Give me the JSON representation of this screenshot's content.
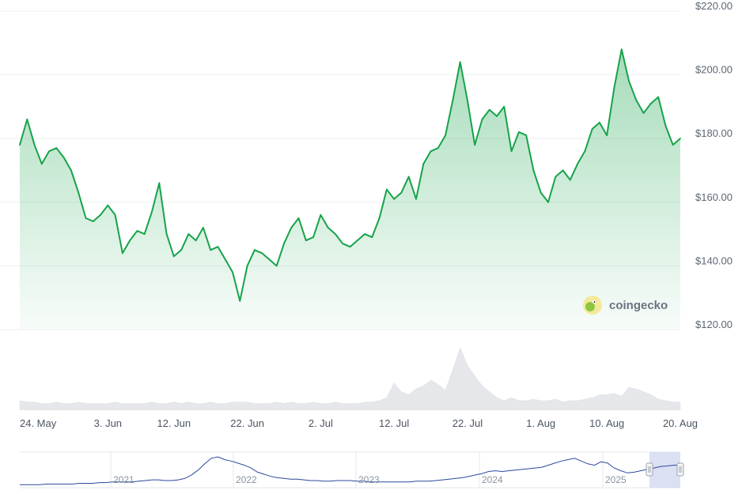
{
  "chart_data": {
    "type": "area",
    "yaxis": {
      "ticks": [
        220,
        200,
        180,
        160,
        140,
        120
      ],
      "tick_labels": [
        "$220.00",
        "$200.00",
        "$180.00",
        "$160.00",
        "$140.00",
        "$120.00"
      ],
      "range": [
        120,
        220
      ],
      "position": "right",
      "grid": true
    },
    "xaxis": {
      "range": [
        "2025-05-22",
        "2025-08-20"
      ],
      "tick_labels": [
        "24. May",
        "3. Jun",
        "12. Jun",
        "22. Jun",
        "2. Jul",
        "12. Jul",
        "22. Jul",
        "1. Aug",
        "10. Aug",
        "20. Aug"
      ],
      "tick_dates": [
        "2025-05-24",
        "2025-06-03",
        "2025-06-12",
        "2025-06-22",
        "2025-07-02",
        "2025-07-12",
        "2025-07-22",
        "2025-08-01",
        "2025-08-10",
        "2025-08-20"
      ]
    },
    "series": [
      {
        "x": [
          "2025-05-22",
          "2025-05-23",
          "2025-05-24",
          "2025-05-25",
          "2025-05-26",
          "2025-05-27",
          "2025-05-28",
          "2025-05-29",
          "2025-05-30",
          "2025-05-31",
          "2025-06-01",
          "2025-06-02",
          "2025-06-03",
          "2025-06-04",
          "2025-06-05",
          "2025-06-06",
          "2025-06-07",
          "2025-06-08",
          "2025-06-09",
          "2025-06-10",
          "2025-06-11",
          "2025-06-12",
          "2025-06-13",
          "2025-06-14",
          "2025-06-15",
          "2025-06-16",
          "2025-06-17",
          "2025-06-18",
          "2025-06-19",
          "2025-06-20",
          "2025-06-21",
          "2025-06-22",
          "2025-06-23",
          "2025-06-24",
          "2025-06-25",
          "2025-06-26",
          "2025-06-27",
          "2025-06-28",
          "2025-06-29",
          "2025-06-30",
          "2025-07-01",
          "2025-07-02",
          "2025-07-03",
          "2025-07-04",
          "2025-07-05",
          "2025-07-06",
          "2025-07-07",
          "2025-07-08",
          "2025-07-09",
          "2025-07-10",
          "2025-07-11",
          "2025-07-12",
          "2025-07-13",
          "2025-07-14",
          "2025-07-15",
          "2025-07-16",
          "2025-07-17",
          "2025-07-18",
          "2025-07-19",
          "2025-07-20",
          "2025-07-21",
          "2025-07-22",
          "2025-07-23",
          "2025-07-24",
          "2025-07-25",
          "2025-07-26",
          "2025-07-27",
          "2025-07-28",
          "2025-07-29",
          "2025-07-30",
          "2025-07-31",
          "2025-08-01",
          "2025-08-02",
          "2025-08-03",
          "2025-08-04",
          "2025-08-05",
          "2025-08-06",
          "2025-08-07",
          "2025-08-08",
          "2025-08-09",
          "2025-08-10",
          "2025-08-11",
          "2025-08-12",
          "2025-08-13",
          "2025-08-14",
          "2025-08-15",
          "2025-08-16",
          "2025-08-17",
          "2025-08-18",
          "2025-08-19",
          "2025-08-20"
        ],
        "y": [
          178,
          186,
          178,
          172,
          176,
          177,
          174,
          170,
          163,
          155,
          154,
          156,
          159,
          156,
          144,
          148,
          151,
          150,
          157,
          166,
          150,
          143,
          145,
          150,
          148,
          152,
          145,
          146,
          142,
          138,
          129,
          140,
          145,
          144,
          142,
          140,
          147,
          152,
          155,
          148,
          149,
          156,
          152,
          150,
          147,
          146,
          148,
          150,
          149,
          155,
          164,
          161,
          163,
          168,
          161,
          172,
          176,
          177,
          181,
          192,
          204,
          192,
          178,
          186,
          189,
          187,
          190,
          176,
          182,
          181,
          170,
          163,
          160,
          168,
          170,
          167,
          172,
          176,
          183,
          185,
          181,
          196,
          208,
          198,
          192,
          188,
          191,
          193,
          184,
          178,
          180
        ]
      }
    ],
    "volume": [
      6,
      5,
      5,
      4,
      4,
      5,
      4,
      4,
      5,
      4,
      4,
      4,
      4,
      5,
      4,
      4,
      4,
      4,
      5,
      4,
      4,
      5,
      4,
      5,
      4,
      4,
      5,
      4,
      4,
      5,
      5,
      5,
      4,
      4,
      4,
      5,
      4,
      5,
      4,
      4,
      5,
      4,
      4,
      5,
      4,
      4,
      4,
      5,
      5,
      6,
      8,
      18,
      12,
      10,
      14,
      16,
      20,
      17,
      13,
      27,
      42,
      30,
      23,
      16,
      12,
      8,
      6,
      8,
      6,
      6,
      7,
      6,
      6,
      7,
      5,
      6,
      6,
      7,
      8,
      10,
      10,
      11,
      9,
      15,
      14,
      12,
      10,
      7,
      6,
      5,
      5
    ],
    "navigator": {
      "year_labels": [
        "2021",
        "2022",
        "2023",
        "2024",
        "2025"
      ],
      "values": [
        2,
        2,
        2,
        2,
        3,
        3,
        3,
        3,
        3,
        4,
        4,
        4,
        5,
        5,
        6,
        6,
        6,
        6,
        7,
        8,
        9,
        9,
        8,
        8,
        9,
        11,
        16,
        23,
        32,
        40,
        42,
        38,
        36,
        33,
        30,
        26,
        20,
        17,
        14,
        12,
        11,
        10,
        10,
        9,
        8,
        8,
        7,
        7,
        8,
        8,
        8,
        7,
        7,
        6,
        6,
        6,
        6,
        6,
        6,
        6,
        7,
        7,
        7,
        8,
        9,
        10,
        11,
        12,
        14,
        16,
        18,
        21,
        22,
        21,
        22,
        23,
        24,
        25,
        26,
        27,
        30,
        33,
        36,
        38,
        40,
        36,
        32,
        30,
        35,
        33,
        26,
        22,
        19,
        20,
        22,
        24,
        26,
        28,
        29,
        30,
        30
      ]
    },
    "series_color": "#16a34a",
    "volume_color": "#e5e7eb",
    "navigator_line_color": "#2c4a9c",
    "navigator_selection_color": "#c7d0ec"
  },
  "watermark": {
    "logo_icon": "coingecko-gecko-icon",
    "text": "coingecko"
  }
}
